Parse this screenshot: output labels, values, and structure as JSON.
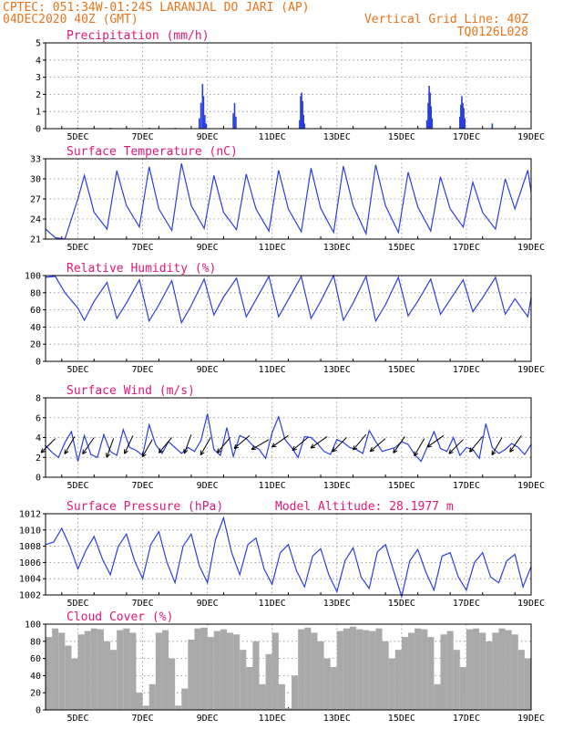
{
  "header": {
    "line1_left": "CPTEC:   051:34W-01:24S  LARANJAL DO JARI (AP)",
    "line2_left": "04DEC2020 40Z (GMT)",
    "line2_right": "Vertical Grid Line: 40Z",
    "line3_right": "TQ0126L028"
  },
  "colors": {
    "header": "#e8731a",
    "title": "#e0177a",
    "line": "#2a3fe0",
    "cloud": "#a9a9a9",
    "grid": "#888888"
  },
  "x_ticks": [
    "5DEC",
    "7DEC",
    "9DEC",
    "11DEC",
    "13DEC",
    "15DEC",
    "17DEC",
    "19DEC"
  ],
  "chart_data": [
    {
      "id": "precip",
      "type": "bar",
      "title": "Precipitation (mm/h)",
      "ylim": [
        0,
        5
      ],
      "yticks": [
        0,
        1,
        2,
        3,
        4,
        5
      ],
      "x_unit": "day-of-December",
      "bars": [
        [
          5.0,
          0.05
        ],
        [
          6.0,
          0.05
        ],
        [
          6.5,
          0.05
        ],
        [
          7.2,
          0.05
        ],
        [
          8.0,
          0.05
        ],
        [
          8.75,
          0.6
        ],
        [
          8.8,
          1.5
        ],
        [
          8.85,
          2.6
        ],
        [
          8.88,
          1.9
        ],
        [
          8.92,
          0.8
        ],
        [
          8.96,
          0.3
        ],
        [
          9.8,
          0.9
        ],
        [
          9.84,
          1.5
        ],
        [
          9.88,
          0.7
        ],
        [
          11.85,
          0.5
        ],
        [
          11.88,
          1.9
        ],
        [
          11.91,
          2.1
        ],
        [
          11.94,
          1.6
        ],
        [
          11.97,
          0.8
        ],
        [
          12.0,
          0.3
        ],
        [
          13.5,
          0.05
        ],
        [
          14.5,
          0.05
        ],
        [
          15.78,
          0.5
        ],
        [
          15.82,
          1.5
        ],
        [
          15.85,
          2.5
        ],
        [
          15.88,
          2.1
        ],
        [
          15.91,
          1.3
        ],
        [
          15.94,
          0.6
        ],
        [
          16.8,
          0.7
        ],
        [
          16.83,
          1.4
        ],
        [
          16.86,
          1.9
        ],
        [
          16.89,
          1.5
        ],
        [
          16.92,
          1.2
        ],
        [
          16.95,
          0.6
        ],
        [
          17.8,
          0.3
        ],
        [
          18.5,
          0.05
        ]
      ]
    },
    {
      "id": "temp",
      "type": "line",
      "title": "Surface Temperature (nC)",
      "ylim": [
        21,
        33
      ],
      "yticks": [
        21,
        24,
        27,
        30,
        33
      ],
      "x_unit": "day-of-December",
      "x": [
        4.0,
        4.3,
        4.6,
        5.0,
        5.2,
        5.5,
        5.9,
        6.2,
        6.5,
        6.9,
        7.2,
        7.5,
        7.9,
        8.2,
        8.5,
        8.9,
        9.2,
        9.5,
        9.9,
        10.2,
        10.5,
        10.9,
        11.2,
        11.5,
        11.9,
        12.2,
        12.5,
        12.9,
        13.2,
        13.5,
        13.9,
        14.2,
        14.5,
        14.9,
        15.2,
        15.5,
        15.9,
        16.2,
        16.5,
        16.9,
        17.2,
        17.5,
        17.9,
        18.2,
        18.5,
        18.9,
        19.0
      ],
      "y": [
        22.5,
        21.2,
        21.0,
        27.0,
        30.5,
        25.0,
        22.5,
        31.2,
        26.0,
        22.8,
        31.8,
        25.5,
        22.3,
        32.3,
        26.0,
        22.6,
        30.5,
        25.0,
        22.4,
        30.7,
        25.5,
        22.2,
        31.3,
        25.5,
        22.1,
        31.6,
        25.6,
        22.0,
        31.9,
        26.0,
        21.8,
        32.1,
        26.0,
        22.0,
        31.0,
        25.8,
        22.2,
        30.3,
        25.5,
        22.8,
        29.5,
        25.0,
        22.5,
        30.0,
        25.5,
        31.3,
        28.0
      ]
    },
    {
      "id": "rh",
      "type": "line",
      "title": "Relative Humidity (%)",
      "ylim": [
        0,
        100
      ],
      "yticks": [
        0,
        20,
        40,
        60,
        80,
        100
      ],
      "x_unit": "day-of-December",
      "x": [
        4.0,
        4.3,
        4.6,
        5.0,
        5.2,
        5.5,
        5.9,
        6.2,
        6.5,
        6.9,
        7.2,
        7.5,
        7.9,
        8.2,
        8.5,
        8.9,
        9.2,
        9.5,
        9.9,
        10.2,
        10.5,
        10.9,
        11.2,
        11.5,
        11.9,
        12.2,
        12.5,
        12.9,
        13.2,
        13.5,
        13.9,
        14.2,
        14.5,
        14.9,
        15.2,
        15.5,
        15.9,
        16.2,
        16.5,
        16.9,
        17.2,
        17.5,
        17.9,
        18.2,
        18.5,
        18.9,
        19.0
      ],
      "y": [
        98,
        99,
        80,
        62,
        48,
        70,
        92,
        50,
        68,
        95,
        47,
        66,
        94,
        45,
        65,
        96,
        54,
        75,
        97,
        52,
        72,
        99,
        52,
        72,
        99,
        50,
        70,
        100,
        48,
        68,
        99,
        47,
        66,
        98,
        53,
        70,
        96,
        55,
        72,
        95,
        58,
        74,
        98,
        55,
        73,
        52,
        75
      ]
    },
    {
      "id": "wind",
      "type": "line",
      "title": "Surface Wind (m/s)",
      "ylim": [
        0,
        8
      ],
      "yticks": [
        0,
        2,
        4,
        6,
        8
      ],
      "x_unit": "day-of-December",
      "x": [
        4.0,
        4.2,
        4.4,
        4.6,
        4.8,
        5.0,
        5.2,
        5.4,
        5.6,
        5.8,
        6.0,
        6.2,
        6.4,
        6.6,
        6.8,
        7.0,
        7.2,
        7.4,
        7.6,
        7.8,
        8.0,
        8.2,
        8.4,
        8.6,
        8.8,
        9.0,
        9.2,
        9.4,
        9.6,
        9.8,
        10.0,
        10.2,
        10.4,
        10.6,
        10.8,
        11.0,
        11.2,
        11.4,
        11.6,
        11.8,
        12.0,
        12.2,
        12.4,
        12.6,
        12.8,
        13.0,
        13.2,
        13.4,
        13.6,
        13.8,
        14.0,
        14.2,
        14.4,
        14.6,
        14.8,
        15.0,
        15.2,
        15.4,
        15.6,
        15.8,
        16.0,
        16.2,
        16.4,
        16.6,
        16.8,
        17.0,
        17.2,
        17.4,
        17.6,
        17.8,
        18.0,
        18.2,
        18.4,
        18.6,
        18.8,
        19.0
      ],
      "y": [
        3.2,
        2.5,
        2.0,
        3.5,
        4.6,
        1.6,
        4.2,
        2.3,
        2.0,
        4.3,
        2.6,
        2.2,
        4.8,
        3.0,
        2.7,
        2.2,
        5.3,
        3.3,
        2.4,
        3.6,
        3.0,
        2.4,
        3.0,
        2.6,
        3.7,
        6.4,
        2.8,
        2.2,
        5.0,
        2.1,
        4.2,
        3.9,
        3.2,
        2.8,
        1.9,
        4.5,
        6.1,
        3.8,
        3.0,
        2.0,
        4.1,
        4.0,
        3.4,
        2.6,
        2.3,
        3.8,
        3.5,
        3.0,
        2.8,
        2.4,
        4.7,
        3.6,
        2.6,
        2.8,
        3.0,
        3.6,
        3.3,
        2.3,
        1.6,
        3.1,
        4.6,
        2.9,
        2.6,
        4.0,
        2.2,
        3.0,
        2.8,
        1.9,
        5.4,
        3.0,
        2.4,
        2.8,
        3.4,
        3.0,
        2.3,
        3.3
      ],
      "arrows": [
        [
          4.3,
          3.9,
          225
        ],
        [
          4.9,
          4.1,
          240
        ],
        [
          5.5,
          4.0,
          235
        ],
        [
          6.1,
          3.9,
          250
        ],
        [
          6.7,
          4.2,
          245
        ],
        [
          7.3,
          3.8,
          240
        ],
        [
          7.9,
          4.0,
          230
        ],
        [
          8.5,
          4.3,
          250
        ],
        [
          9.1,
          4.0,
          240
        ],
        [
          9.7,
          4.0,
          230
        ],
        [
          10.3,
          4.2,
          220
        ],
        [
          10.9,
          3.8,
          210
        ],
        [
          11.5,
          4.2,
          215
        ],
        [
          12.1,
          4.0,
          220
        ],
        [
          12.7,
          4.1,
          215
        ],
        [
          13.3,
          4.0,
          225
        ],
        [
          13.9,
          4.3,
          230
        ],
        [
          14.5,
          3.9,
          220
        ],
        [
          15.1,
          4.1,
          235
        ],
        [
          15.7,
          3.9,
          240
        ],
        [
          16.3,
          4.2,
          215
        ],
        [
          16.9,
          3.8,
          225
        ],
        [
          17.5,
          4.1,
          230
        ],
        [
          18.1,
          4.0,
          240
        ],
        [
          18.7,
          4.2,
          235
        ]
      ]
    },
    {
      "id": "pres",
      "type": "line",
      "title": "Surface Pressure (hPa)",
      "subtitle": "Model Altitude: 28.1977 m",
      "ylim": [
        1002,
        1012
      ],
      "yticks": [
        1002,
        1004,
        1006,
        1008,
        1010,
        1012
      ],
      "x_unit": "day-of-December",
      "x": [
        4.0,
        4.25,
        4.5,
        4.75,
        5.0,
        5.25,
        5.5,
        5.75,
        6.0,
        6.25,
        6.5,
        6.75,
        7.0,
        7.25,
        7.5,
        7.75,
        8.0,
        8.25,
        8.5,
        8.75,
        9.0,
        9.25,
        9.5,
        9.75,
        10.0,
        10.25,
        10.5,
        10.75,
        11.0,
        11.25,
        11.5,
        11.75,
        12.0,
        12.25,
        12.5,
        12.75,
        13.0,
        13.25,
        13.5,
        13.75,
        14.0,
        14.25,
        14.5,
        14.75,
        15.0,
        15.25,
        15.5,
        15.75,
        16.0,
        16.25,
        16.5,
        16.75,
        17.0,
        17.25,
        17.5,
        17.75,
        18.0,
        18.25,
        18.5,
        18.75,
        19.0
      ],
      "y": [
        1008.2,
        1008.5,
        1010.2,
        1008.0,
        1005.2,
        1007.5,
        1009.2,
        1006.5,
        1004.5,
        1008.0,
        1009.5,
        1006.2,
        1004.0,
        1008.2,
        1009.8,
        1006.0,
        1003.5,
        1008.0,
        1009.5,
        1005.6,
        1003.5,
        1008.8,
        1011.5,
        1007.2,
        1004.5,
        1008.2,
        1009.0,
        1005.2,
        1003.3,
        1007.2,
        1008.2,
        1005.0,
        1003.0,
        1006.8,
        1007.7,
        1004.5,
        1002.4,
        1006.2,
        1007.8,
        1004.2,
        1002.8,
        1007.3,
        1008.2,
        1005.0,
        1001.8,
        1006.2,
        1007.6,
        1004.8,
        1002.6,
        1006.8,
        1007.2,
        1004.2,
        1002.6,
        1006.0,
        1007.2,
        1004.2,
        1003.5,
        1006.2,
        1007.0,
        1003.0,
        1005.5
      ]
    },
    {
      "id": "cloud",
      "type": "bar",
      "title": "Cloud Cover (%)",
      "ylim": [
        0,
        100
      ],
      "yticks": [
        0,
        20,
        40,
        60,
        80,
        100
      ],
      "x_unit": "day-of-December",
      "x": [
        4.0,
        4.2,
        4.4,
        4.6,
        4.8,
        5.0,
        5.2,
        5.4,
        5.6,
        5.8,
        6.0,
        6.2,
        6.4,
        6.6,
        6.8,
        7.0,
        7.2,
        7.4,
        7.6,
        7.8,
        8.0,
        8.2,
        8.4,
        8.6,
        8.8,
        9.0,
        9.2,
        9.4,
        9.6,
        9.8,
        10.0,
        10.2,
        10.4,
        10.6,
        10.8,
        11.0,
        11.2,
        11.4,
        11.6,
        11.8,
        12.0,
        12.2,
        12.4,
        12.6,
        12.8,
        13.0,
        13.2,
        13.4,
        13.6,
        13.8,
        14.0,
        14.2,
        14.4,
        14.6,
        14.8,
        15.0,
        15.2,
        15.4,
        15.6,
        15.8,
        16.0,
        16.2,
        16.4,
        16.6,
        16.8,
        17.0,
        17.2,
        17.4,
        17.6,
        17.8,
        18.0,
        18.2,
        18.4,
        18.6,
        18.8,
        19.0
      ],
      "y": [
        85,
        95,
        90,
        75,
        60,
        88,
        92,
        95,
        94,
        80,
        70,
        93,
        95,
        90,
        20,
        5,
        30,
        90,
        93,
        60,
        5,
        25,
        82,
        95,
        96,
        85,
        92,
        94,
        90,
        88,
        70,
        50,
        80,
        30,
        65,
        90,
        30,
        2,
        40,
        94,
        96,
        90,
        80,
        60,
        50,
        92,
        95,
        97,
        94,
        93,
        92,
        95,
        80,
        60,
        70,
        85,
        90,
        95,
        94,
        85,
        30,
        88,
        92,
        70,
        50,
        94,
        95,
        90,
        80,
        90,
        95,
        93,
        88,
        70,
        60,
        90
      ]
    }
  ]
}
